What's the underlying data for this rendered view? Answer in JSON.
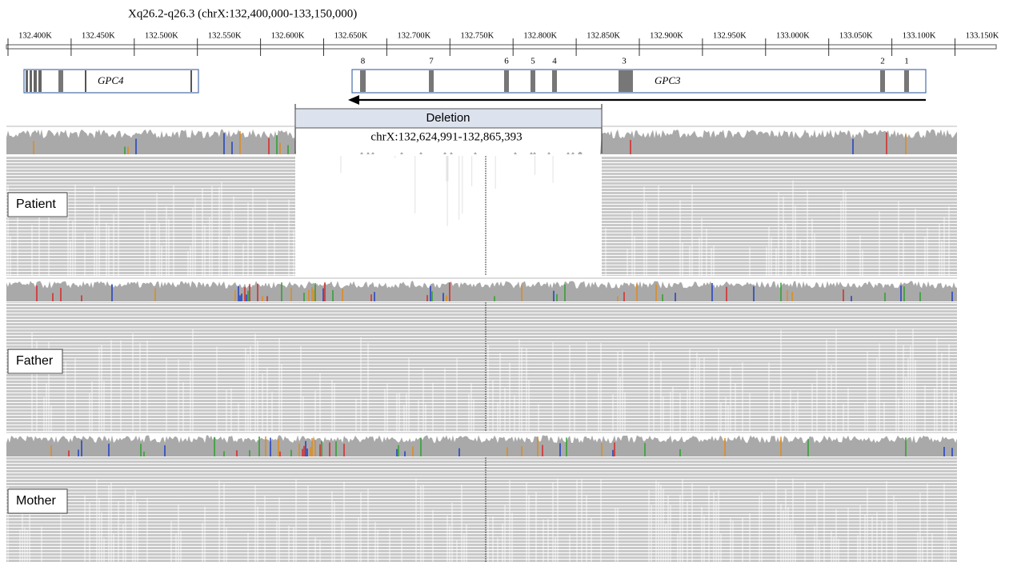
{
  "header": {
    "title": "Xq26.2-q26.3 (chrX:132,400,000-133,150,000)"
  },
  "ruler": {
    "ticks": [
      "132.400K",
      "132.450K",
      "132.500K",
      "132.550K",
      "132.600K",
      "132.650K",
      "132.700K",
      "132.750K",
      "132.800K",
      "132.850K",
      "132.900K",
      "132.950K",
      "133.000K",
      "133.050K",
      "133.100K",
      "133.150K"
    ]
  },
  "genes": [
    {
      "label": "GPC4"
    },
    {
      "label": "GPC3",
      "exons": [
        "8",
        "7",
        "6",
        "5",
        "4",
        "3",
        "2",
        "1"
      ]
    }
  ],
  "deletion": {
    "label": "Deletion",
    "region": "chrX:132,624,991-132,865,393"
  },
  "tracks": [
    {
      "label": "Patient"
    },
    {
      "label": "Father"
    },
    {
      "label": "Mother"
    }
  ]
}
